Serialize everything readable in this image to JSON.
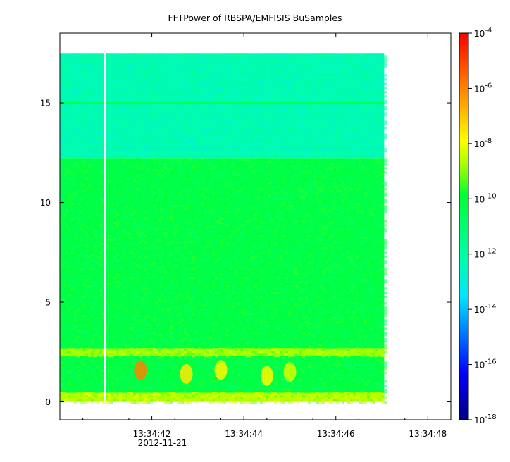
{
  "chart_data": {
    "type": "heatmap",
    "title": "FFTPower of RBSPA/EMFISIS  BuSamples",
    "xlabel": "",
    "ylabel": "",
    "x_ticks": [
      {
        "value": 1.0,
        "label": "13:34:42",
        "sublabel": "2012-11-21"
      },
      {
        "value": 3.0,
        "label": "13:34:44",
        "sublabel": ""
      },
      {
        "value": 5.0,
        "label": "13:34:46",
        "sublabel": ""
      },
      {
        "value": 7.0,
        "label": "13:34:48",
        "sublabel": ""
      }
    ],
    "x_minor_ticks": [
      -0.5,
      0.5,
      1.5,
      2.5,
      3.5,
      4.5,
      5.5,
      6.5
    ],
    "xlim": [
      -1.0,
      7.5
    ],
    "y_ticks": [
      0,
      5,
      10,
      15
    ],
    "ylim": [
      -0.9,
      18.5
    ],
    "data_x_range": [
      -1.0,
      6.05
    ],
    "data_y_range": [
      0.0,
      17.5
    ],
    "data_gap_x": [
      -0.05,
      0.0
    ],
    "colorbar": {
      "scale": "log",
      "range": [
        1e-18,
        0.0001
      ],
      "tick_exponents": [
        -4,
        -6,
        -8,
        -10,
        -12,
        -14,
        -16,
        -18
      ],
      "tick_labels": [
        "10",
        "10",
        "10",
        "10",
        "10",
        "10",
        "10",
        "10"
      ],
      "tick_superscripts": [
        "-4",
        "-6",
        "-8",
        "-10",
        "-12",
        "-14",
        "-16",
        "-18"
      ]
    },
    "features": [
      {
        "kind": "band",
        "y_range": [
          12.2,
          17.5
        ],
        "log10_power": -12.3
      },
      {
        "kind": "band",
        "y_range": [
          0.0,
          12.2
        ],
        "log10_power": -10.3
      },
      {
        "kind": "line",
        "y": 15.0,
        "log10_power": -10.5
      },
      {
        "kind": "band",
        "y_range": [
          2.3,
          2.7
        ],
        "log10_power": -8.8
      },
      {
        "kind": "band",
        "y_range": [
          0.0,
          0.5
        ],
        "log10_power": -8.6
      },
      {
        "kind": "blob",
        "x": 0.75,
        "y": 1.6,
        "log10_power": -6.0
      },
      {
        "kind": "blob",
        "x": 1.75,
        "y": 1.4,
        "log10_power": -7.6
      },
      {
        "kind": "blob",
        "x": 2.5,
        "y": 1.6,
        "log10_power": -7.8
      },
      {
        "kind": "blob",
        "x": 3.5,
        "y": 1.3,
        "log10_power": -7.8
      },
      {
        "kind": "blob",
        "x": 4.0,
        "y": 1.5,
        "log10_power": -8.3
      }
    ]
  }
}
